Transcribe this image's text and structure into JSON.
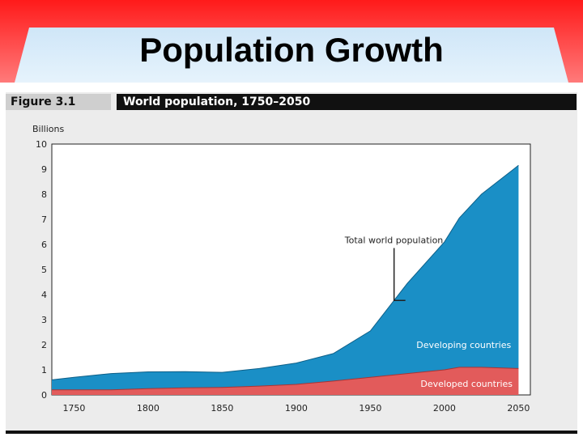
{
  "slide": {
    "title": "Population Growth"
  },
  "figure": {
    "number": "Figure 3.1",
    "title": "World population, 1750–2050"
  },
  "chart_data": {
    "type": "area",
    "ylabel": "Billions",
    "xlim": [
      1735,
      2058
    ],
    "ylim": [
      0,
      10
    ],
    "x_ticks": [
      1750,
      1800,
      1850,
      1900,
      1950,
      2000,
      2050
    ],
    "y_ticks": [
      0,
      1,
      2,
      3,
      4,
      5,
      6,
      7,
      8,
      9,
      10
    ],
    "x": [
      1735,
      1750,
      1775,
      1800,
      1825,
      1850,
      1875,
      1900,
      1925,
      1950,
      1975,
      2000,
      2010,
      2025,
      2050
    ],
    "series": [
      {
        "name": "Developed countries",
        "color": "#e25b5b",
        "values": [
          0.2,
          0.2,
          0.2,
          0.25,
          0.28,
          0.3,
          0.35,
          0.42,
          0.55,
          0.7,
          0.85,
          1.0,
          1.1,
          1.1,
          1.05
        ]
      },
      {
        "name": "Developing countries",
        "color": "#1a8fc6",
        "values": [
          0.4,
          0.5,
          0.65,
          0.67,
          0.65,
          0.6,
          0.7,
          0.85,
          1.1,
          1.85,
          3.6,
          5.1,
          5.95,
          6.9,
          8.1
        ]
      }
    ],
    "total_label": "Total world population",
    "annotations": [
      {
        "text": "Total world population",
        "x": 1955,
        "y": 6.05
      },
      {
        "text": "Developing countries",
        "x": 2045,
        "y": 2.0
      },
      {
        "text": "Developed countries",
        "x": 2046,
        "y": 0.45
      }
    ]
  }
}
